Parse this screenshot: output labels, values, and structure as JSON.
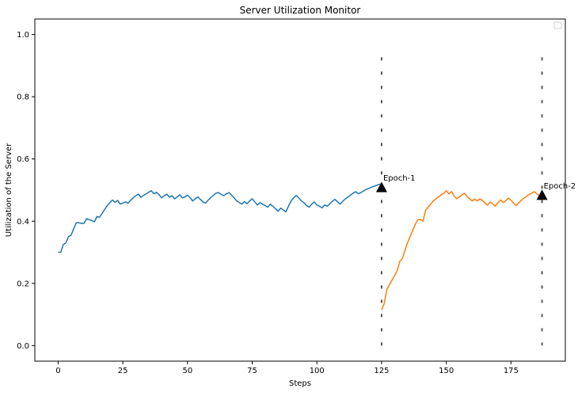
{
  "chart_data": {
    "type": "line",
    "title": "Server Utilization Monitor",
    "xlabel": "Steps",
    "ylabel": "Utilization of the Server",
    "xlim": [
      -9,
      196
    ],
    "ylim": [
      -0.05,
      1.05
    ],
    "xticks": [
      0,
      25,
      50,
      75,
      100,
      125,
      150,
      175
    ],
    "yticks": [
      0.0,
      0.2,
      0.4,
      0.6,
      0.8,
      1.0
    ],
    "xtick_labels": [
      "0",
      "25",
      "50",
      "75",
      "100",
      "125",
      "150",
      "175"
    ],
    "ytick_labels": [
      "0.0",
      "0.2",
      "0.4",
      "0.6",
      "0.8",
      "1.0"
    ],
    "grid": false,
    "legend": "top-right (empty)",
    "series": [
      {
        "color": "#1f77b4",
        "x": [
          0,
          1,
          2,
          3,
          4,
          5,
          6,
          7,
          8,
          9,
          10,
          11,
          12,
          13,
          14,
          15,
          16,
          17,
          18,
          19,
          20,
          21,
          22,
          23,
          24,
          25,
          26,
          27,
          28,
          29,
          30,
          31,
          32,
          33,
          34,
          35,
          36,
          37,
          38,
          39,
          40,
          41,
          42,
          43,
          44,
          45,
          46,
          47,
          48,
          49,
          50,
          51,
          52,
          53,
          54,
          55,
          56,
          57,
          58,
          59,
          60,
          61,
          62,
          63,
          64,
          65,
          66,
          67,
          68,
          69,
          70,
          71,
          72,
          73,
          74,
          75,
          76,
          77,
          78,
          79,
          80,
          81,
          82,
          83,
          84,
          85,
          86,
          87,
          88,
          89,
          90,
          91,
          92,
          93,
          94,
          95,
          96,
          97,
          98,
          99,
          100,
          101,
          102,
          103,
          104,
          105,
          106,
          107,
          108,
          109,
          110,
          111,
          112,
          113,
          114,
          115,
          116,
          117,
          118,
          119,
          120,
          121,
          122,
          123,
          124,
          125
        ],
        "y": [
          0.3,
          0.3,
          0.325,
          0.33,
          0.35,
          0.355,
          0.375,
          0.395,
          0.395,
          0.393,
          0.393,
          0.408,
          0.405,
          0.402,
          0.398,
          0.415,
          0.413,
          0.425,
          0.438,
          0.45,
          0.46,
          0.468,
          0.46,
          0.467,
          0.455,
          0.458,
          0.462,
          0.458,
          0.467,
          0.475,
          0.482,
          0.487,
          0.477,
          0.483,
          0.488,
          0.493,
          0.498,
          0.488,
          0.493,
          0.485,
          0.475,
          0.482,
          0.487,
          0.477,
          0.482,
          0.472,
          0.478,
          0.485,
          0.475,
          0.478,
          0.484,
          0.475,
          0.465,
          0.472,
          0.478,
          0.47,
          0.462,
          0.458,
          0.468,
          0.476,
          0.483,
          0.49,
          0.492,
          0.486,
          0.482,
          0.488,
          0.492,
          0.484,
          0.475,
          0.465,
          0.46,
          0.455,
          0.463,
          0.456,
          0.465,
          0.472,
          0.462,
          0.452,
          0.46,
          0.455,
          0.45,
          0.445,
          0.455,
          0.448,
          0.44,
          0.432,
          0.442,
          0.436,
          0.43,
          0.448,
          0.465,
          0.475,
          0.483,
          0.475,
          0.465,
          0.46,
          0.45,
          0.445,
          0.455,
          0.462,
          0.452,
          0.448,
          0.443,
          0.452,
          0.448,
          0.456,
          0.464,
          0.47,
          0.462,
          0.455,
          0.464,
          0.472,
          0.478,
          0.484,
          0.49,
          0.495,
          0.488,
          0.492,
          0.497,
          0.502,
          0.505,
          0.509,
          0.512,
          0.515,
          0.518,
          0.52
        ]
      },
      {
        "color": "#ff7f0e",
        "x": [
          125,
          126,
          127,
          128,
          129,
          130,
          131,
          132,
          133,
          134,
          135,
          136,
          137,
          138,
          139,
          140,
          141,
          142,
          143,
          144,
          145,
          146,
          147,
          148,
          149,
          150,
          151,
          152,
          153,
          154,
          155,
          156,
          157,
          158,
          159,
          160,
          161,
          162,
          163,
          164,
          165,
          166,
          167,
          168,
          169,
          170,
          171,
          172,
          173,
          174,
          175,
          176,
          177,
          178,
          179,
          180,
          181,
          182,
          183,
          184,
          185,
          186,
          187
        ],
        "y": [
          0.115,
          0.135,
          0.18,
          0.195,
          0.21,
          0.225,
          0.24,
          0.27,
          0.28,
          0.305,
          0.33,
          0.35,
          0.37,
          0.39,
          0.405,
          0.405,
          0.4,
          0.435,
          0.445,
          0.455,
          0.465,
          0.472,
          0.478,
          0.485,
          0.49,
          0.498,
          0.488,
          0.495,
          0.482,
          0.472,
          0.478,
          0.484,
          0.49,
          0.48,
          0.472,
          0.465,
          0.471,
          0.465,
          0.472,
          0.466,
          0.458,
          0.452,
          0.462,
          0.455,
          0.448,
          0.46,
          0.468,
          0.46,
          0.466,
          0.474,
          0.467,
          0.458,
          0.45,
          0.459,
          0.467,
          0.474,
          0.48,
          0.486,
          0.49,
          0.495,
          0.488,
          0.482,
          0.49
        ]
      }
    ],
    "vlines": [
      {
        "x": 125,
        "style": "dashed",
        "color": "#555555",
        "ymin": 0.0,
        "ymax": 0.96
      },
      {
        "x": 187,
        "style": "dashed",
        "color": "#555555",
        "ymin": 0.0,
        "ymax": 0.96
      }
    ],
    "annotations": [
      {
        "x": 125,
        "y": 0.51,
        "marker": "triangle-up",
        "text": "Epoch-1"
      },
      {
        "x": 187,
        "y": 0.485,
        "marker": "triangle-up",
        "text": "Epoch-2"
      }
    ]
  }
}
